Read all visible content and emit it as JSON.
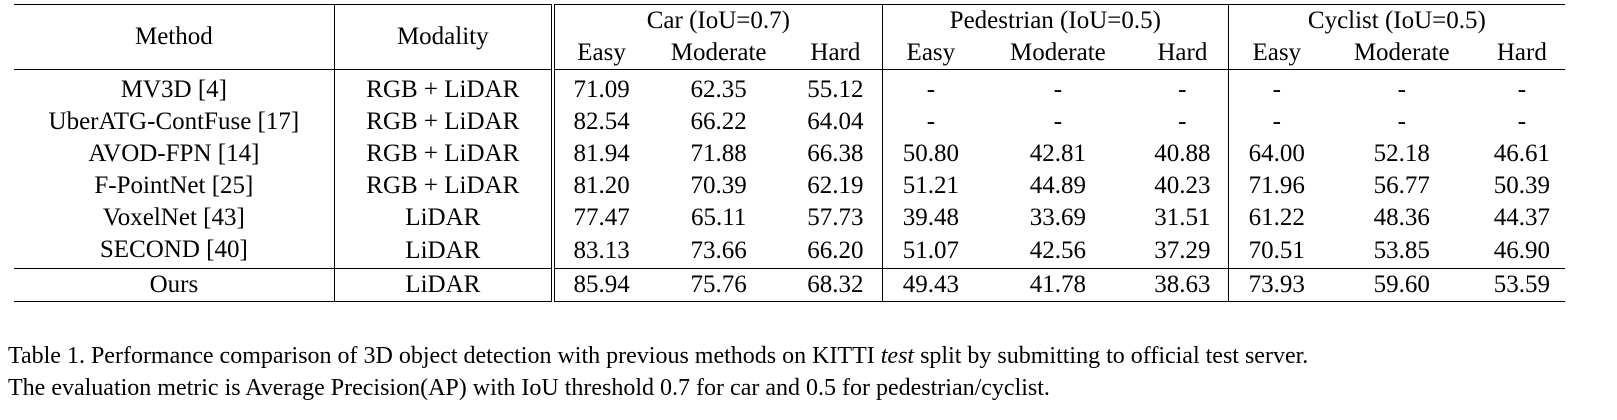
{
  "table": {
    "header": {
      "method": "Method",
      "modality": "Modality",
      "groups": [
        "Car (IoU=0.7)",
        "Pedestrian (IoU=0.5)",
        "Cyclist (IoU=0.5)"
      ],
      "difficulties": [
        "Easy",
        "Moderate",
        "Hard"
      ]
    },
    "rows": [
      {
        "method": "MV3D [4]",
        "modality": "RGB + LiDAR",
        "values": [
          "71.09",
          "62.35",
          "55.12",
          "-",
          "-",
          "-",
          "-",
          "-",
          "-"
        ]
      },
      {
        "method": "UberATG-ContFuse [17]",
        "modality": "RGB + LiDAR",
        "values": [
          "82.54",
          "66.22",
          "64.04",
          "-",
          "-",
          "-",
          "-",
          "-",
          "-"
        ]
      },
      {
        "method": "AVOD-FPN [14]",
        "modality": "RGB + LiDAR",
        "values": [
          "81.94",
          "71.88",
          "66.38",
          "50.80",
          "42.81",
          "40.88",
          "64.00",
          "52.18",
          "46.61"
        ]
      },
      {
        "method": "F-PointNet [25]",
        "modality": "RGB + LiDAR",
        "values": [
          "81.20",
          "70.39",
          "62.19",
          "51.21",
          "44.89",
          "40.23",
          "71.96",
          "56.77",
          "50.39"
        ]
      },
      {
        "method": "VoxelNet [43]",
        "modality": "LiDAR",
        "values": [
          "77.47",
          "65.11",
          "57.73",
          "39.48",
          "33.69",
          "31.51",
          "61.22",
          "48.36",
          "44.37"
        ]
      },
      {
        "method": "SECOND [40]",
        "modality": "LiDAR",
        "values": [
          "83.13",
          "73.66",
          "66.20",
          "51.07",
          "42.56",
          "37.29",
          "70.51",
          "53.85",
          "46.90"
        ]
      },
      {
        "method": "Ours",
        "modality": "LiDAR",
        "values": [
          "85.94",
          "75.76",
          "68.32",
          "49.43",
          "41.78",
          "38.63",
          "73.93",
          "59.60",
          "53.59"
        ]
      }
    ]
  },
  "caption": {
    "line1_before": "Table 1. Performance comparison of 3D object detection with previous methods on KITTI ",
    "line1_italic": "test",
    "line1_after": " split by submitting to official test server.",
    "line2": "The evaluation metric is Average Precision(AP) with IoU threshold 0.7 for car and 0.5 for pedestrian/cyclist."
  }
}
